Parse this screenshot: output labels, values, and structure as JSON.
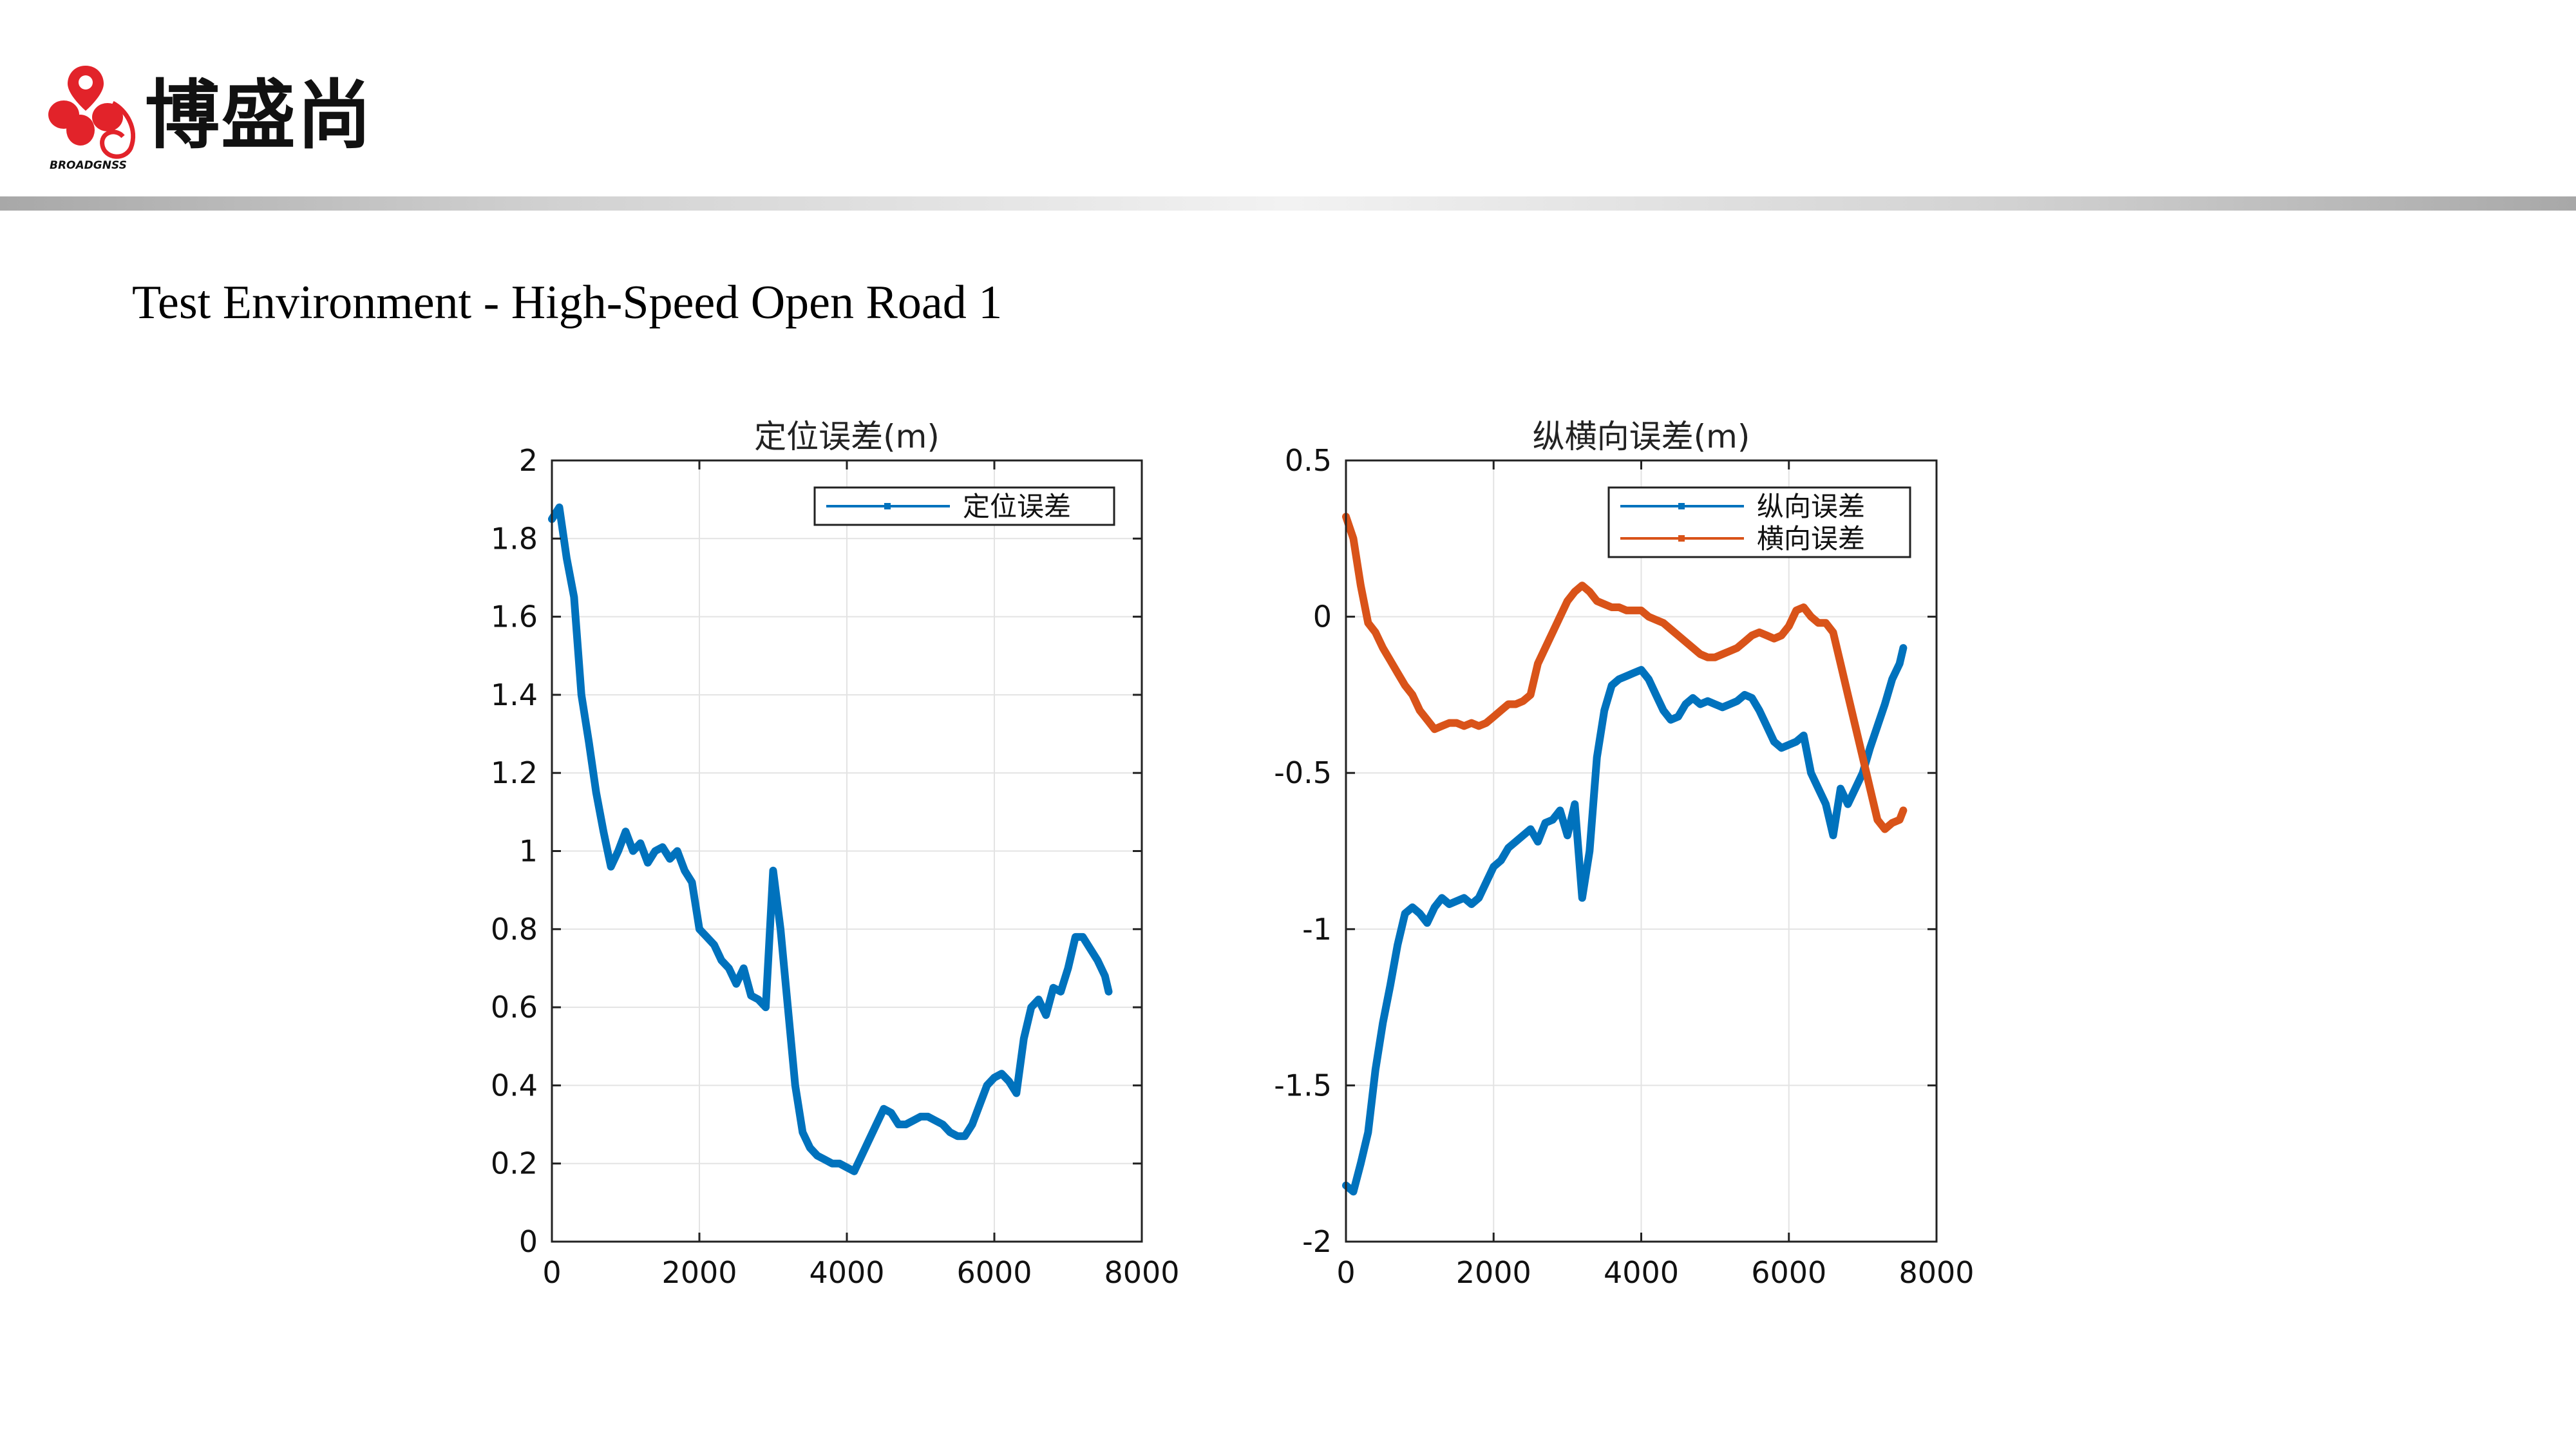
{
  "header": {
    "brand_name": "博盛尚",
    "logo_text": "BROADGNSS",
    "colors": {
      "logo_red": "#e2232a",
      "header_bar": "#b0b0b0"
    }
  },
  "slide": {
    "title": "Test Environment - High-Speed Open Road 1"
  },
  "chart_data": [
    {
      "type": "line",
      "title": "定位误差(m)",
      "xlabel": "",
      "ylabel": "",
      "xlim": [
        0,
        8000
      ],
      "ylim": [
        0,
        2
      ],
      "xticks": [
        "0",
        "2000",
        "4000",
        "6000",
        "8000"
      ],
      "yticks": [
        "0",
        "0.2",
        "0.4",
        "0.6",
        "0.8",
        "1",
        "1.2",
        "1.4",
        "1.6",
        "1.8",
        "2"
      ],
      "grid": true,
      "legend_position": "top-right",
      "series": [
        {
          "name": "定位误差",
          "color": "#0072bd",
          "x": [
            0,
            100,
            200,
            300,
            400,
            500,
            600,
            700,
            800,
            900,
            1000,
            1100,
            1200,
            1300,
            1400,
            1500,
            1600,
            1700,
            1800,
            1900,
            2000,
            2100,
            2200,
            2300,
            2400,
            2500,
            2600,
            2700,
            2800,
            2900,
            3000,
            3100,
            3200,
            3300,
            3400,
            3500,
            3600,
            3700,
            3800,
            3900,
            4000,
            4100,
            4200,
            4300,
            4400,
            4500,
            4600,
            4700,
            4800,
            4900,
            5000,
            5100,
            5200,
            5300,
            5400,
            5500,
            5600,
            5700,
            5800,
            5900,
            6000,
            6100,
            6200,
            6300,
            6400,
            6500,
            6600,
            6700,
            6800,
            6900,
            7000,
            7100,
            7200,
            7300,
            7400,
            7500,
            7550
          ],
          "y": [
            1.85,
            1.88,
            1.75,
            1.65,
            1.4,
            1.28,
            1.15,
            1.05,
            0.96,
            1.0,
            1.05,
            1.0,
            1.02,
            0.97,
            1.0,
            1.01,
            0.98,
            1.0,
            0.95,
            0.92,
            0.8,
            0.78,
            0.76,
            0.72,
            0.7,
            0.66,
            0.7,
            0.63,
            0.62,
            0.6,
            0.95,
            0.8,
            0.6,
            0.4,
            0.28,
            0.24,
            0.22,
            0.21,
            0.2,
            0.2,
            0.19,
            0.18,
            0.22,
            0.26,
            0.3,
            0.34,
            0.33,
            0.3,
            0.3,
            0.31,
            0.32,
            0.32,
            0.31,
            0.3,
            0.28,
            0.27,
            0.27,
            0.3,
            0.35,
            0.4,
            0.42,
            0.43,
            0.41,
            0.38,
            0.52,
            0.6,
            0.62,
            0.58,
            0.65,
            0.64,
            0.7,
            0.78,
            0.78,
            0.75,
            0.72,
            0.68,
            0.64
          ]
        }
      ]
    },
    {
      "type": "line",
      "title": "纵横向误差(m)",
      "xlabel": "",
      "ylabel": "",
      "xlim": [
        0,
        8000
      ],
      "ylim": [
        -2,
        0.5
      ],
      "xticks": [
        "0",
        "2000",
        "4000",
        "6000",
        "8000"
      ],
      "yticks": [
        "-2",
        "-1.5",
        "-1",
        "-0.5",
        "0",
        "0.5"
      ],
      "grid": true,
      "legend_position": "top-right",
      "series": [
        {
          "name": "纵向误差",
          "color": "#0072bd",
          "x": [
            0,
            100,
            200,
            300,
            400,
            500,
            600,
            700,
            800,
            900,
            1000,
            1100,
            1200,
            1300,
            1400,
            1500,
            1600,
            1700,
            1800,
            1900,
            2000,
            2100,
            2200,
            2300,
            2400,
            2500,
            2600,
            2700,
            2800,
            2900,
            3000,
            3100,
            3200,
            3300,
            3400,
            3500,
            3600,
            3700,
            3800,
            3900,
            4000,
            4100,
            4200,
            4300,
            4400,
            4500,
            4600,
            4700,
            4800,
            4900,
            5000,
            5100,
            5200,
            5300,
            5400,
            5500,
            5600,
            5700,
            5800,
            5900,
            6000,
            6100,
            6200,
            6300,
            6400,
            6500,
            6600,
            6700,
            6800,
            6900,
            7000,
            7100,
            7200,
            7300,
            7400,
            7500,
            7550
          ],
          "y": [
            -1.82,
            -1.84,
            -1.75,
            -1.65,
            -1.45,
            -1.3,
            -1.18,
            -1.05,
            -0.95,
            -0.93,
            -0.95,
            -0.98,
            -0.93,
            -0.9,
            -0.92,
            -0.91,
            -0.9,
            -0.92,
            -0.9,
            -0.85,
            -0.8,
            -0.78,
            -0.74,
            -0.72,
            -0.7,
            -0.68,
            -0.72,
            -0.66,
            -0.65,
            -0.62,
            -0.7,
            -0.6,
            -0.9,
            -0.75,
            -0.45,
            -0.3,
            -0.22,
            -0.2,
            -0.19,
            -0.18,
            -0.17,
            -0.2,
            -0.25,
            -0.3,
            -0.33,
            -0.32,
            -0.28,
            -0.26,
            -0.28,
            -0.27,
            -0.28,
            -0.29,
            -0.28,
            -0.27,
            -0.25,
            -0.26,
            -0.3,
            -0.35,
            -0.4,
            -0.42,
            -0.41,
            -0.4,
            -0.38,
            -0.5,
            -0.55,
            -0.6,
            -0.7,
            -0.55,
            -0.6,
            -0.55,
            -0.5,
            -0.42,
            -0.35,
            -0.28,
            -0.2,
            -0.15,
            -0.1
          ]
        },
        {
          "name": "横向误差",
          "color": "#d95319",
          "x": [
            0,
            100,
            200,
            300,
            400,
            500,
            600,
            700,
            800,
            900,
            1000,
            1100,
            1200,
            1300,
            1400,
            1500,
            1600,
            1700,
            1800,
            1900,
            2000,
            2100,
            2200,
            2300,
            2400,
            2500,
            2600,
            2700,
            2800,
            2900,
            3000,
            3100,
            3200,
            3300,
            3400,
            3500,
            3600,
            3700,
            3800,
            3900,
            4000,
            4100,
            4200,
            4300,
            4400,
            4500,
            4600,
            4700,
            4800,
            4900,
            5000,
            5100,
            5200,
            5300,
            5400,
            5500,
            5600,
            5700,
            5800,
            5900,
            6000,
            6100,
            6200,
            6300,
            6400,
            6500,
            6600,
            6700,
            6800,
            6900,
            7000,
            7100,
            7200,
            7300,
            7400,
            7500,
            7550
          ],
          "y": [
            0.32,
            0.25,
            0.1,
            -0.02,
            -0.05,
            -0.1,
            -0.14,
            -0.18,
            -0.22,
            -0.25,
            -0.3,
            -0.33,
            -0.36,
            -0.35,
            -0.34,
            -0.34,
            -0.35,
            -0.34,
            -0.35,
            -0.34,
            -0.32,
            -0.3,
            -0.28,
            -0.28,
            -0.27,
            -0.25,
            -0.15,
            -0.1,
            -0.05,
            0.0,
            0.05,
            0.08,
            0.1,
            0.08,
            0.05,
            0.04,
            0.03,
            0.03,
            0.02,
            0.02,
            0.02,
            0.0,
            -0.01,
            -0.02,
            -0.04,
            -0.06,
            -0.08,
            -0.1,
            -0.12,
            -0.13,
            -0.13,
            -0.12,
            -0.11,
            -0.1,
            -0.08,
            -0.06,
            -0.05,
            -0.06,
            -0.07,
            -0.06,
            -0.03,
            0.02,
            0.03,
            0.0,
            -0.02,
            -0.02,
            -0.05,
            -0.15,
            -0.25,
            -0.35,
            -0.45,
            -0.55,
            -0.65,
            -0.68,
            -0.66,
            -0.65,
            -0.62
          ]
        }
      ]
    }
  ]
}
